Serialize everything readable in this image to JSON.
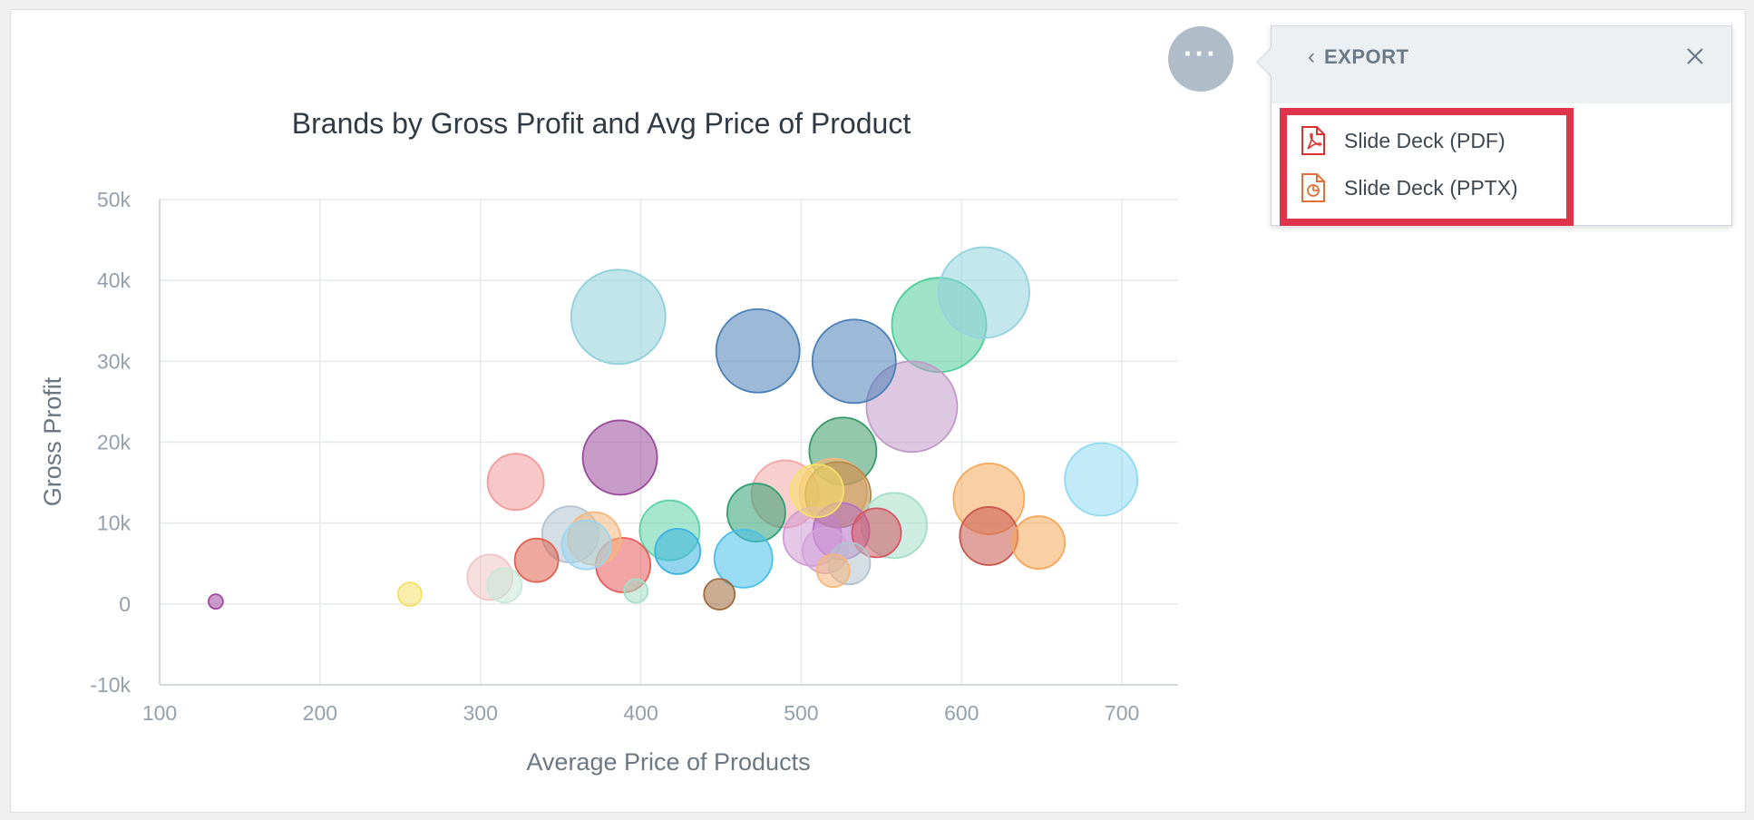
{
  "chart_data": {
    "type": "bubble",
    "title": "Brands by Gross Profit and Avg Price of Product",
    "xlabel": "Average Price of Products",
    "ylabel": "Gross Profit",
    "xlim": [
      100,
      735
    ],
    "ylim": [
      -10000,
      50000
    ],
    "x_ticks": [
      "100",
      "200",
      "300",
      "400",
      "500",
      "600",
      "700"
    ],
    "y_ticks": [
      "50k",
      "40k",
      "30k",
      "20k",
      "10k",
      "0",
      "-10k"
    ],
    "x_tick_values": [
      100,
      200,
      300,
      400,
      500,
      600,
      700
    ],
    "y_tick_values": [
      50000,
      40000,
      30000,
      20000,
      10000,
      0,
      -10000
    ],
    "grid": true,
    "points": [
      {
        "x": 386,
        "y": 35500,
        "size": 52,
        "color": "#8fd0db"
      },
      {
        "x": 614,
        "y": 38500,
        "size": 50,
        "color": "#93d2df"
      },
      {
        "x": 586,
        "y": 34500,
        "size": 52,
        "color": "#4fcc9a"
      },
      {
        "x": 473,
        "y": 31300,
        "size": 46,
        "color": "#4a7fb7"
      },
      {
        "x": 533,
        "y": 30000,
        "size": 46,
        "color": "#4a7fb7"
      },
      {
        "x": 569,
        "y": 24400,
        "size": 50,
        "color": "#c199c9"
      },
      {
        "x": 387,
        "y": 18100,
        "size": 41,
        "color": "#9a4a9a"
      },
      {
        "x": 526,
        "y": 18900,
        "size": 37,
        "color": "#3a9a6a"
      },
      {
        "x": 687,
        "y": 15400,
        "size": 40,
        "color": "#8fd9f2"
      },
      {
        "x": 322,
        "y": 15100,
        "size": 31,
        "color": "#f29a9a"
      },
      {
        "x": 617,
        "y": 13000,
        "size": 39,
        "color": "#f5a85a"
      },
      {
        "x": 490,
        "y": 13600,
        "size": 37,
        "color": "#f4a5a5"
      },
      {
        "x": 510,
        "y": 14000,
        "size": 29,
        "color": "#f5e06a"
      },
      {
        "x": 520,
        "y": 13800,
        "size": 37,
        "color": "#f5b77a"
      },
      {
        "x": 523,
        "y": 13500,
        "size": 36,
        "color": "#b88a4a"
      },
      {
        "x": 472,
        "y": 11300,
        "size": 32,
        "color": "#2fa075"
      },
      {
        "x": 418,
        "y": 9100,
        "size": 33,
        "color": "#5fd2a7"
      },
      {
        "x": 558,
        "y": 9700,
        "size": 36,
        "color": "#a3dec6"
      },
      {
        "x": 356,
        "y": 8600,
        "size": 31,
        "color": "#b2c2cf"
      },
      {
        "x": 371,
        "y": 8100,
        "size": 29,
        "color": "#f5b77a"
      },
      {
        "x": 366,
        "y": 7300,
        "size": 27,
        "color": "#9ad6f0"
      },
      {
        "x": 507,
        "y": 8300,
        "size": 32,
        "color": "#d099d6"
      },
      {
        "x": 525,
        "y": 9000,
        "size": 31,
        "color": "#b56fc7"
      },
      {
        "x": 547,
        "y": 8800,
        "size": 27,
        "color": "#d65560"
      },
      {
        "x": 617,
        "y": 8400,
        "size": 32,
        "color": "#c9574e"
      },
      {
        "x": 648,
        "y": 7600,
        "size": 29,
        "color": "#f5a85a"
      },
      {
        "x": 423,
        "y": 6500,
        "size": 25,
        "color": "#3bb3e0"
      },
      {
        "x": 464,
        "y": 5600,
        "size": 32,
        "color": "#47c0ea"
      },
      {
        "x": 335,
        "y": 5400,
        "size": 24,
        "color": "#e0614f"
      },
      {
        "x": 389,
        "y": 4800,
        "size": 30,
        "color": "#ea5a5a"
      },
      {
        "x": 306,
        "y": 3300,
        "size": 25,
        "color": "#f0c4c4"
      },
      {
        "x": 315,
        "y": 2300,
        "size": 19,
        "color": "#c8e8da"
      },
      {
        "x": 530,
        "y": 5000,
        "size": 23,
        "color": "#b2c2cf"
      },
      {
        "x": 515,
        "y": 6600,
        "size": 25,
        "color": "#d2a3d8"
      },
      {
        "x": 520,
        "y": 4100,
        "size": 18,
        "color": "#f5b77a"
      },
      {
        "x": 397,
        "y": 1600,
        "size": 13,
        "color": "#a3dec6"
      },
      {
        "x": 449,
        "y": 1200,
        "size": 17,
        "color": "#a06a3a"
      },
      {
        "x": 256,
        "y": 1200,
        "size": 13,
        "color": "#f5e06a"
      },
      {
        "x": 135,
        "y": 300,
        "size": 8,
        "color": "#a04aa0"
      }
    ]
  },
  "menu": {
    "button_glyph": "···",
    "export_title": "EXPORT",
    "back_glyph": "‹",
    "items": [
      {
        "label": "Slide Deck (PDF)",
        "icon": "pdf-file-icon"
      },
      {
        "label": "Slide Deck (PPTX)",
        "icon": "pptx-file-icon"
      }
    ]
  },
  "colors": {
    "highlight": "#e0344c",
    "pdf_icon": "#d9322f",
    "pptx_icon": "#e0703a",
    "menu_button": "#b0bcc8"
  }
}
